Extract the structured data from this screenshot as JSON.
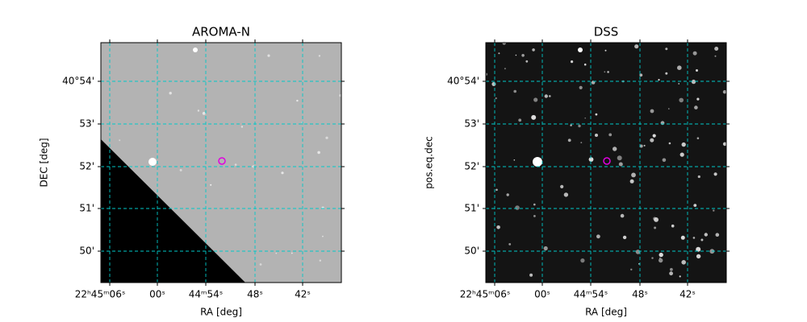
{
  "panels": [
    {
      "title": "AROMA-N",
      "x_axis": {
        "label": "RA [deg]",
        "ticks": [
          "22ʰ45ᵐ06ˢ",
          "00ˢ",
          "44ᵐ54ˢ",
          "48ˢ",
          "42ˢ"
        ]
      },
      "y_axis": {
        "label": "DEC [deg]",
        "ticks": [
          "40°54'",
          "53'",
          "52'",
          "51'",
          "50'"
        ]
      }
    },
    {
      "title": "DSS",
      "x_axis": {
        "label": "RA [deg]",
        "ticks": [
          "22ʰ45ᵐ06ˢ",
          "00ˢ",
          "44ᵐ54ˢ",
          "48ˢ",
          "42ˢ"
        ]
      },
      "y_axis": {
        "label": "pos.eq.dec",
        "ticks": [
          "40°54'",
          "53'",
          "52'",
          "51'",
          "50'"
        ]
      }
    }
  ]
}
